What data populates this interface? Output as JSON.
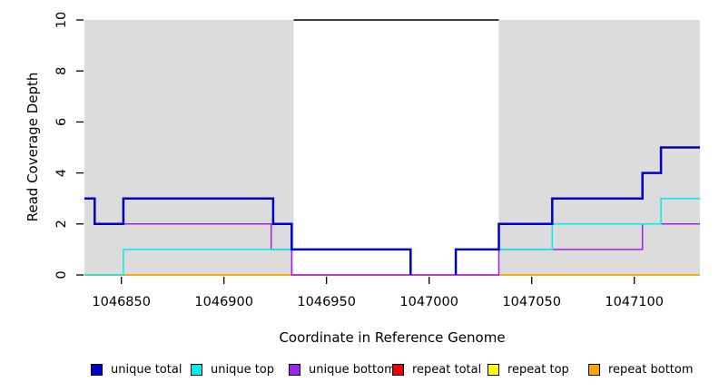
{
  "figure": {
    "background": "#FFFFFF",
    "shaded_region_color": "#DCDCDC"
  },
  "chart_data": {
    "type": "line",
    "step": true,
    "title": "",
    "xlabel": "Coordinate in Reference Genome",
    "ylabel": "Read Coverage Depth",
    "xlim": [
      1046832,
      1047132
    ],
    "ylim": [
      0,
      10
    ],
    "xticks": [
      "1046850",
      "1046900",
      "1046950",
      "1047000",
      "1047050",
      "1047100"
    ],
    "xtick_values": [
      1046850,
      1046900,
      1046950,
      1047000,
      1047050,
      1047100
    ],
    "yticks": [
      "0",
      "2",
      "4",
      "6",
      "8",
      "10"
    ],
    "ytick_values": [
      0,
      2,
      4,
      6,
      8,
      10
    ],
    "grid": false,
    "legend_position": "bottom",
    "shaded_regions": [
      {
        "name": "repeat-region-left",
        "x0": 1046832,
        "x1": 1046934
      },
      {
        "name": "repeat-region-right",
        "x0": 1047034,
        "x1": 1047132
      }
    ],
    "clip_marker": {
      "y": 10,
      "x0": 1046934,
      "x1": 1047034,
      "color": "#000000"
    },
    "series": [
      {
        "name": "repeat total",
        "color": "#EE0000",
        "width": 1.5,
        "paths": [
          [
            [
              1046832,
              0
            ],
            [
              1047132,
              0
            ]
          ]
        ]
      },
      {
        "name": "repeat top",
        "color": "#FFFF00",
        "width": 1.5,
        "paths": [
          [
            [
              1046832,
              0
            ],
            [
              1047132,
              0
            ]
          ]
        ]
      },
      {
        "name": "repeat bottom",
        "color": "#FFA500",
        "width": 1.5,
        "paths": [
          [
            [
              1046832,
              0
            ],
            [
              1047132,
              0
            ]
          ]
        ]
      },
      {
        "name": "unique bottom",
        "color": "#A020F0",
        "width": 1.5,
        "paths": [
          [
            [
              1046832,
              3
            ],
            [
              1046837,
              2
            ],
            [
              1046923,
              1
            ],
            [
              1046933,
              0
            ],
            [
              1047034,
              1
            ],
            [
              1047104,
              2
            ],
            [
              1047132,
              2
            ]
          ]
        ]
      },
      {
        "name": "unique top",
        "color": "#00EEEE",
        "width": 1.5,
        "paths": [
          [
            [
              1046832,
              0
            ],
            [
              1046851,
              1
            ],
            [
              1046991,
              0
            ]
          ],
          [
            [
              1047013,
              0
            ],
            [
              1047013,
              1
            ],
            [
              1047060,
              2
            ],
            [
              1047113,
              3
            ],
            [
              1047132,
              3
            ]
          ]
        ]
      },
      {
        "name": "unique total",
        "color": "#0000CC",
        "width": 2.5,
        "paths": [
          [
            [
              1046832,
              3
            ],
            [
              1046837,
              2
            ],
            [
              1046851,
              3
            ],
            [
              1046924,
              2
            ],
            [
              1046933,
              1
            ],
            [
              1046991,
              0
            ]
          ],
          [
            [
              1047013,
              0
            ],
            [
              1047013,
              1
            ],
            [
              1047034,
              2
            ],
            [
              1047060,
              3
            ],
            [
              1047104,
              4
            ],
            [
              1047113,
              5
            ],
            [
              1047132,
              5
            ]
          ]
        ]
      }
    ],
    "legend": {
      "items": [
        {
          "label": "unique total",
          "color": "#0000CC"
        },
        {
          "label": "unique top",
          "color": "#00EEEE"
        },
        {
          "label": "unique bottom",
          "color": "#A020F0"
        },
        {
          "label": "repeat total",
          "color": "#EE0000"
        },
        {
          "label": "repeat top",
          "color": "#FFFF00"
        },
        {
          "label": "repeat bottom",
          "color": "#FFA500"
        }
      ]
    }
  }
}
